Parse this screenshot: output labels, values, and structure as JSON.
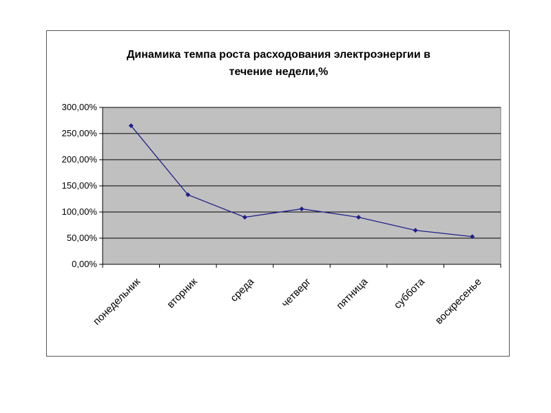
{
  "chart_data": {
    "type": "line",
    "title": "Динамика темпа роста расходования электроэнергии в течение недели,%",
    "title_lines": [
      "Динамика темпа роста расходования электроэнергии в",
      "течение недели,%"
    ],
    "categories": [
      "понедельник",
      "вторник",
      "среда",
      "четверг",
      "пятница",
      "суббота",
      "воскресенье"
    ],
    "series": [
      {
        "values": [
          265,
          133,
          90,
          106,
          90,
          65,
          53
        ]
      }
    ],
    "ylim": [
      0,
      300
    ],
    "yticks": [
      0,
      50,
      100,
      150,
      200,
      250,
      300
    ],
    "ytick_labels": [
      "0,00%",
      "50,00%",
      "100,00%",
      "150,00%",
      "200,00%",
      "250,00%",
      "300,00%"
    ],
    "grid": true,
    "legend": "none",
    "colors": {
      "line": "#1f1f8a",
      "plot_bg": "#c0c0c0",
      "grid": "#000000"
    }
  }
}
